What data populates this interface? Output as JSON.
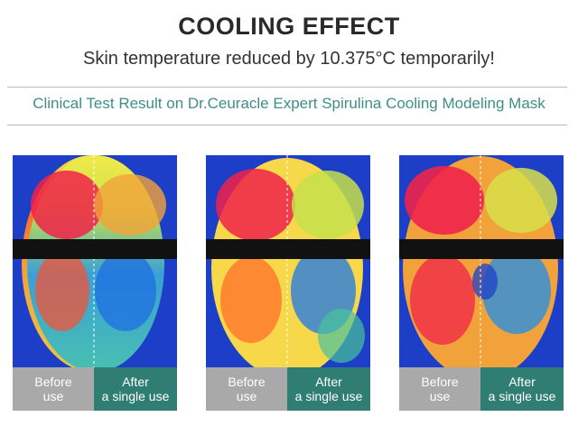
{
  "header": {
    "title": "COOLING EFFECT",
    "subtitle": "Skin temperature reduced by 10.375°C temporarily!"
  },
  "clinical_note": "Clinical Test Result on Dr.Ceuracle Expert Spirulina Cooling Modeling Mask",
  "panels": [
    {
      "before_line1": "Before",
      "before_line2": "use",
      "after_line1": "After",
      "after_line2": "a single use"
    },
    {
      "before_line1": "Before",
      "before_line2": "use",
      "after_line1": "After",
      "after_line2": "a single use"
    },
    {
      "before_line1": "Before",
      "before_line2": "use",
      "after_line1": "After",
      "after_line2": "a single use"
    }
  ],
  "colors": {
    "accent_teal": "#2f7d73",
    "label_grey": "#a9a9a9",
    "heading_teal": "#3f8f83"
  }
}
